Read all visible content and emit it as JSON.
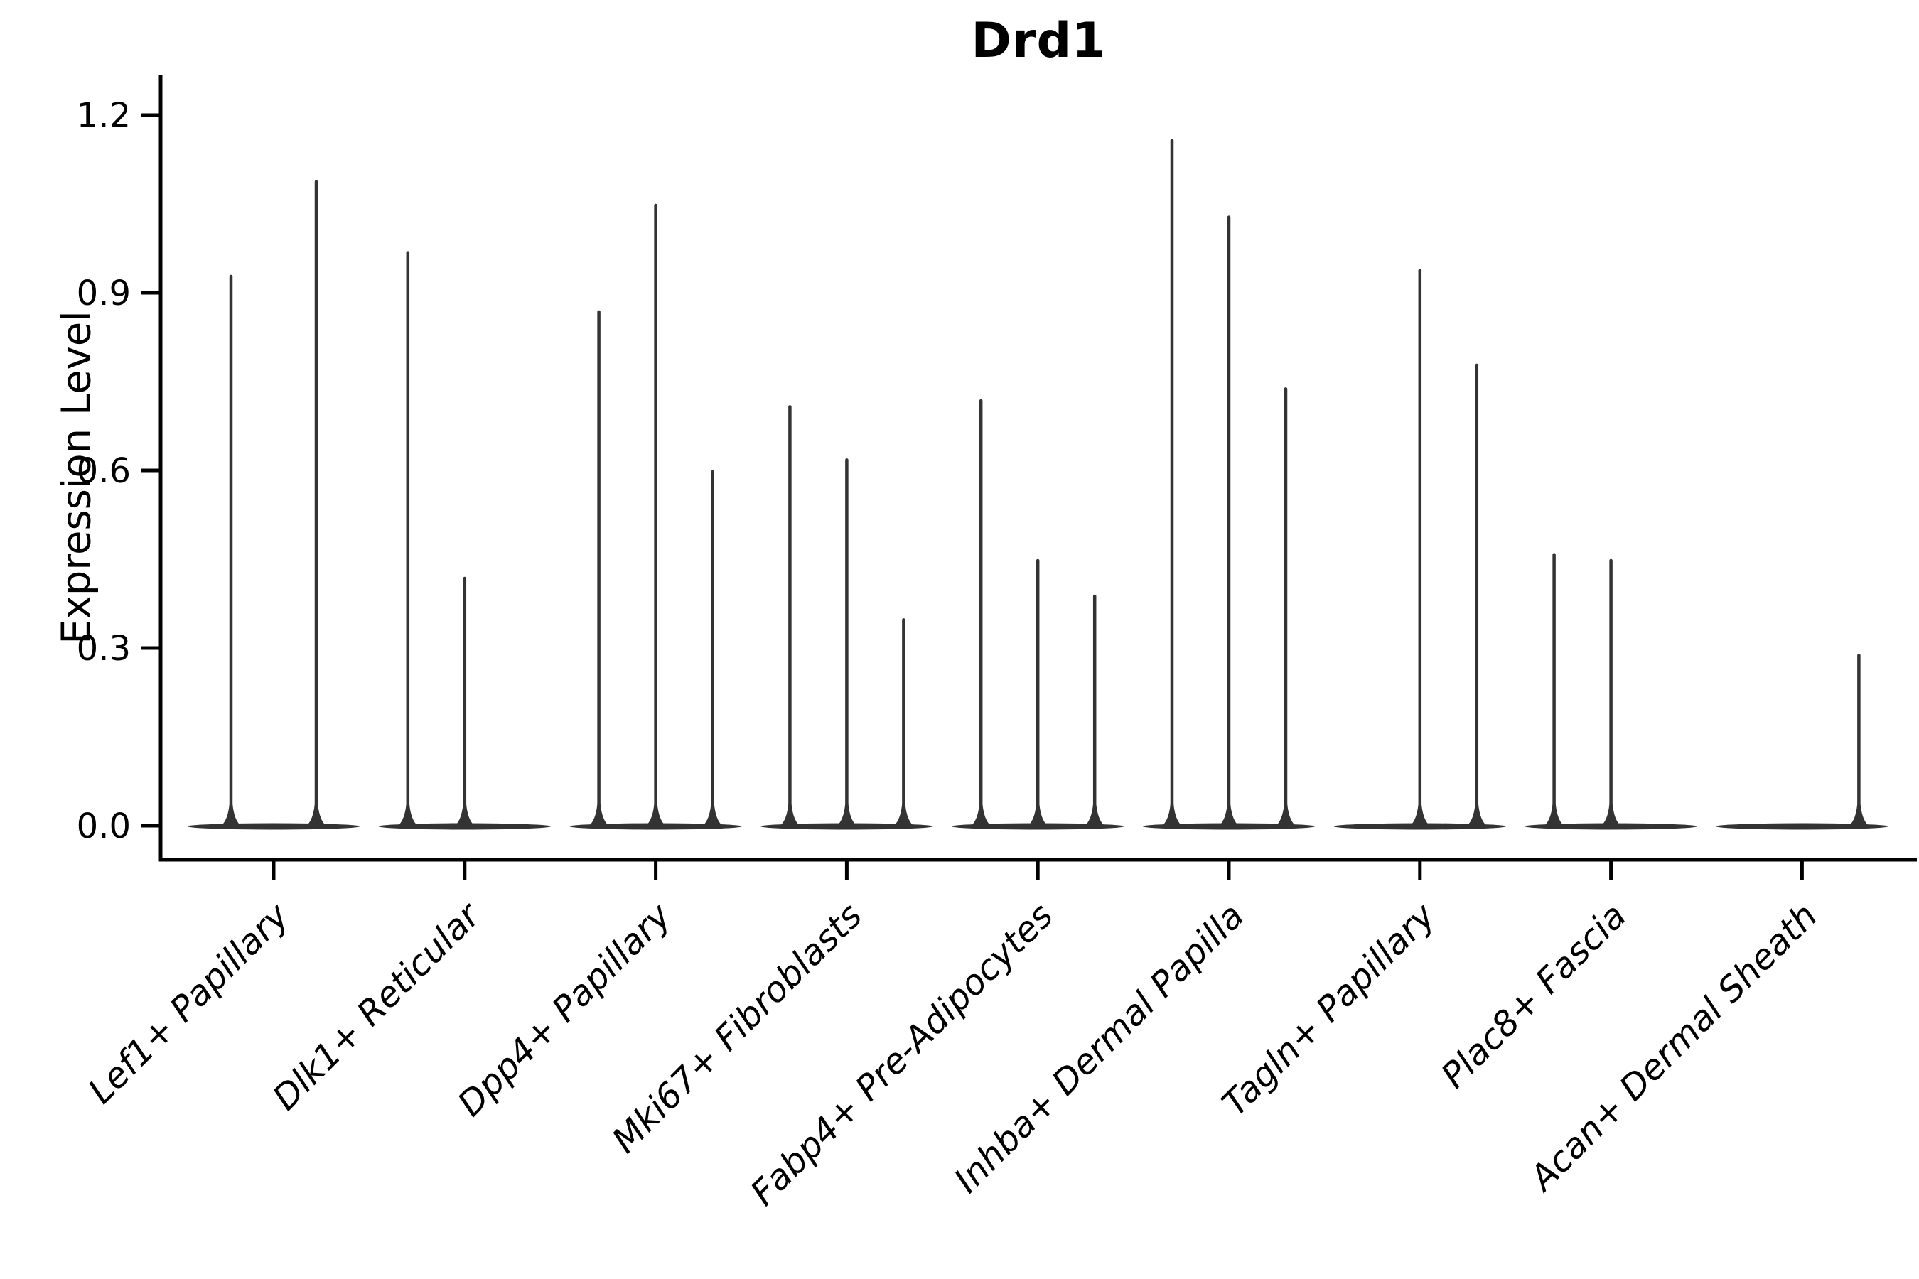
{
  "chart_data": {
    "type": "violin",
    "title": "Drd1",
    "ylabel": "Expression Level",
    "xlabel": "",
    "ylim": [
      0,
      1.27
    ],
    "ytick_values": [
      0.0,
      0.3,
      0.6,
      0.9,
      1.2
    ],
    "ytick_labels": [
      "0.0",
      "0.3",
      "0.6",
      "0.9",
      "1.2"
    ],
    "grid": false,
    "legend": null,
    "xticklabel_rotation": 45,
    "xticklabel_style": "italic",
    "categories": [
      "Lef1+ Papillary",
      "Dlk1+ Reticular",
      "Dpp4+ Papillary",
      "Mki67+ Fibroblasts",
      "Fabp4+ Pre-Adipocytes",
      "Inhba+ Dermal Papilla",
      "Tagln+ Papillary",
      "Plac8+ Fascia",
      "Acan+ Dermal Sheath"
    ],
    "violins": [
      {
        "category": "Lef1+ Papillary",
        "baseline_value": 0.0,
        "spikes": [
          {
            "offset": -60,
            "value": 0.93
          },
          {
            "offset": 60,
            "value": 1.09
          }
        ]
      },
      {
        "category": "Dlk1+ Reticular",
        "baseline_value": 0.0,
        "spikes": [
          {
            "offset": -80,
            "value": 0.97
          },
          {
            "offset": 0,
            "value": 0.42
          }
        ]
      },
      {
        "category": "Dpp4+ Papillary",
        "baseline_value": 0.0,
        "spikes": [
          {
            "offset": -80,
            "value": 0.87
          },
          {
            "offset": 0,
            "value": 1.05
          },
          {
            "offset": 80,
            "value": 0.6
          }
        ]
      },
      {
        "category": "Mki67+ Fibroblasts",
        "baseline_value": 0.0,
        "spikes": [
          {
            "offset": -80,
            "value": 0.71
          },
          {
            "offset": 0,
            "value": 0.62
          },
          {
            "offset": 80,
            "value": 0.35
          }
        ]
      },
      {
        "category": "Fabp4+ Pre-Adipocytes",
        "baseline_value": 0.0,
        "spikes": [
          {
            "offset": -80,
            "value": 0.72
          },
          {
            "offset": 0,
            "value": 0.45
          },
          {
            "offset": 80,
            "value": 0.39
          }
        ]
      },
      {
        "category": "Inhba+ Dermal Papilla",
        "baseline_value": 0.0,
        "spikes": [
          {
            "offset": -80,
            "value": 1.16
          },
          {
            "offset": 0,
            "value": 1.03
          },
          {
            "offset": 80,
            "value": 0.74
          }
        ]
      },
      {
        "category": "Tagln+ Papillary",
        "baseline_value": 0.0,
        "spikes": [
          {
            "offset": 0,
            "value": 0.94
          },
          {
            "offset": 80,
            "value": 0.78
          }
        ]
      },
      {
        "category": "Plac8+ Fascia",
        "baseline_value": 0.0,
        "spikes": [
          {
            "offset": -80,
            "value": 0.46
          },
          {
            "offset": 0,
            "value": 0.45
          }
        ]
      },
      {
        "category": "Acan+ Dermal Sheath",
        "baseline_value": 0.0,
        "spikes": [
          {
            "offset": 80,
            "value": 0.29
          }
        ]
      }
    ],
    "colors": {
      "violin": "#333333",
      "axis": "#000000",
      "text": "#000000",
      "background": "#ffffff"
    }
  }
}
